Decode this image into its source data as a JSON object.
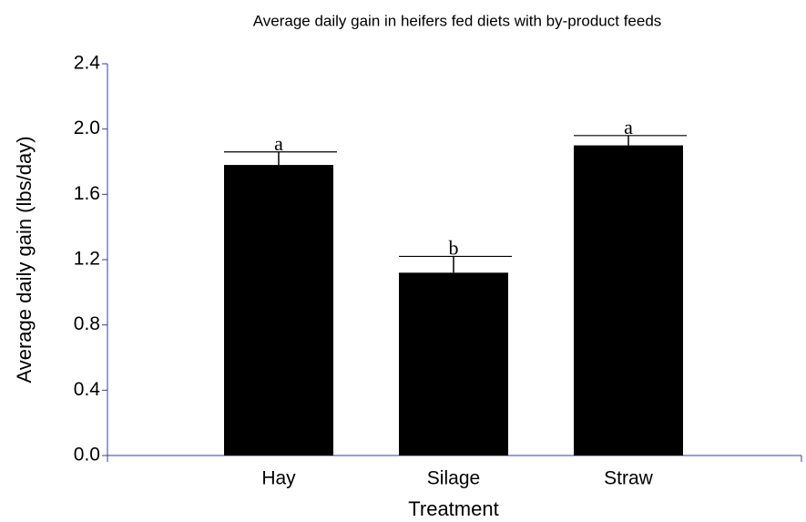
{
  "chart_data": {
    "type": "bar",
    "title": "Average daily gain in heifers fed diets with by-product feeds",
    "x_label": "Treatment",
    "y_label": "Average daily gain (lbs/day)",
    "categories": [
      "Hay",
      "Silage",
      "Straw"
    ],
    "values": [
      1.78,
      1.12,
      1.9
    ],
    "errors": [
      0.08,
      0.1,
      0.06
    ],
    "annotations": [
      "a",
      "b",
      "a"
    ],
    "color": "#000000",
    "axis_color": "#3a3aa0",
    "ylim": [
      0,
      2.4
    ],
    "yticks": [
      {
        "value": 0,
        "label": "0.0"
      },
      {
        "value": 0.4,
        "label": "0.4"
      },
      {
        "value": 0.8,
        "label": "0.8"
      },
      {
        "value": 1.2,
        "label": "1.2"
      },
      {
        "value": 1.6,
        "label": "1.6"
      },
      {
        "value": 2,
        "label": "2.0"
      },
      {
        "value": 2.4,
        "label": "2.4"
      }
    ],
    "grid": false
  }
}
